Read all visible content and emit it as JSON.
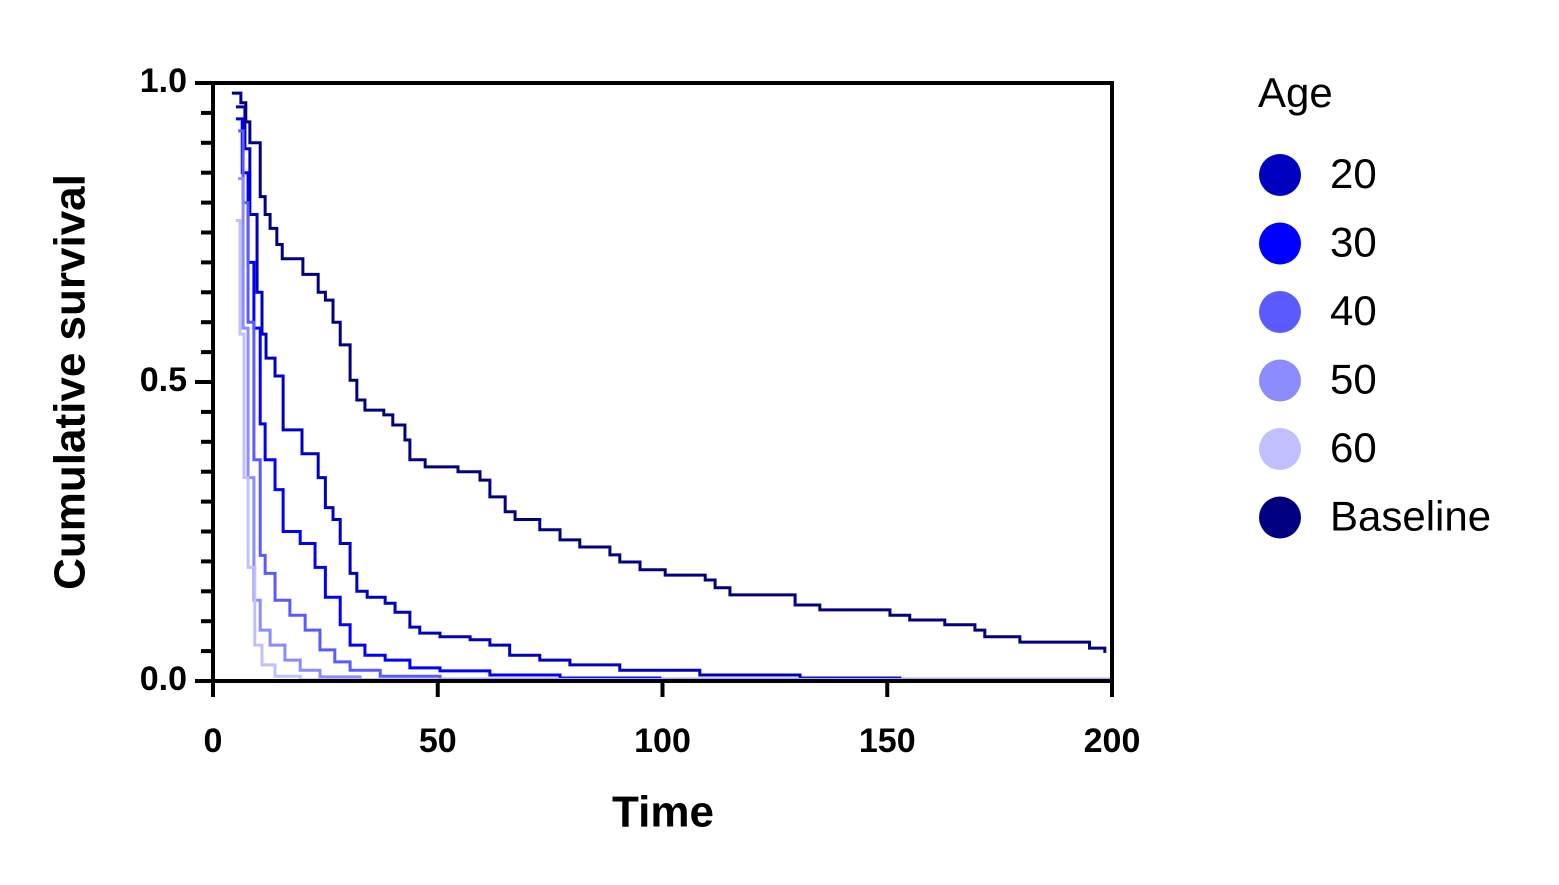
{
  "chart_data": {
    "type": "line",
    "step": true,
    "xlabel": "Time",
    "ylabel": "Cumulative survival",
    "xlim": [
      0,
      200
    ],
    "ylim": [
      0,
      1
    ],
    "xticks": [
      0,
      50,
      100,
      150,
      200
    ],
    "yticks": [
      {
        "value": 0,
        "label": "0.0"
      },
      {
        "value": 0.5,
        "label": "0.5"
      },
      {
        "value": 1,
        "label": "1.0"
      }
    ],
    "yminorticks": [
      0.05,
      0.1,
      0.15,
      0.2,
      0.25,
      0.3,
      0.35,
      0.4,
      0.45,
      0.55,
      0.6,
      0.65,
      0.7,
      0.75,
      0.8,
      0.85,
      0.9,
      0.95
    ],
    "legend_title": "Age",
    "legend_position": "right",
    "series": [
      {
        "name": "20",
        "color": "#0000c0",
        "x": [
          5.1,
          7.1,
          8.2,
          9.8,
          10.9,
          11.8,
          13.8,
          15.6,
          19.8,
          23.4,
          25,
          26.7,
          28.3,
          30.5,
          32,
          34.3,
          38.3,
          40.5,
          43.8,
          46,
          50.5,
          57.2,
          61.6,
          66,
          72.7,
          79.4,
          90.5,
          108.3,
          130.6,
          152.8,
          198.4
        ],
        "values": [
          0.96,
          0.89,
          0.78,
          0.65,
          0.58,
          0.54,
          0.51,
          0.42,
          0.38,
          0.34,
          0.29,
          0.27,
          0.23,
          0.18,
          0.15,
          0.14,
          0.13,
          0.115,
          0.09,
          0.08,
          0.074,
          0.069,
          0.06,
          0.043,
          0.035,
          0.027,
          0.018,
          0.01,
          0.005,
          0.002,
          0.001
        ]
      },
      {
        "name": "30",
        "color": "#0000ff",
        "x": [
          5.1,
          6.5,
          7.8,
          9.1,
          10.5,
          11.6,
          13.8,
          15.6,
          19.4,
          22.7,
          25,
          28.3,
          30.5,
          33.8,
          38.3,
          43.8,
          50.5,
          61.6,
          77.2,
          99.4,
          200
        ],
        "values": [
          0.94,
          0.85,
          0.7,
          0.59,
          0.43,
          0.37,
          0.32,
          0.25,
          0.23,
          0.19,
          0.14,
          0.094,
          0.06,
          0.043,
          0.035,
          0.022,
          0.017,
          0.01,
          0.005,
          0.002,
          0.001
        ]
      },
      {
        "name": "40",
        "color": "#5a5aff",
        "x": [
          5.6,
          6.7,
          7.8,
          9.1,
          10.5,
          11.6,
          13.8,
          17.1,
          20.5,
          23.8,
          27.1,
          30.5,
          37.2,
          50.5,
          200
        ],
        "values": [
          0.92,
          0.8,
          0.6,
          0.37,
          0.21,
          0.18,
          0.135,
          0.11,
          0.085,
          0.052,
          0.032,
          0.018,
          0.008,
          0.003,
          0
        ]
      },
      {
        "name": "50",
        "color": "#8c8cff",
        "x": [
          5.6,
          6.7,
          7.8,
          9.1,
          10.5,
          12.7,
          16,
          19.4,
          23.8,
          32.7,
          200
        ],
        "values": [
          0.84,
          0.59,
          0.34,
          0.135,
          0.085,
          0.06,
          0.035,
          0.018,
          0.007,
          0.002,
          0
        ]
      },
      {
        "name": "60",
        "color": "#c0c0ff",
        "x": [
          5.1,
          6,
          6.9,
          7.8,
          9.3,
          10.9,
          13.8,
          19.4,
          200
        ],
        "values": [
          0.77,
          0.58,
          0.34,
          0.19,
          0.06,
          0.027,
          0.008,
          0.002,
          0
        ]
      },
      {
        "name": "Baseline",
        "color": "#000080",
        "x": [
          4.2,
          6.2,
          7.3,
          8.2,
          10.5,
          11.6,
          12.7,
          14.2,
          15.4,
          20,
          23.4,
          25,
          26.7,
          28.3,
          30.5,
          32,
          33.8,
          38,
          40,
          42.7,
          43.8,
          47.2,
          54.5,
          59.4,
          61.6,
          65,
          67.2,
          72.7,
          77.2,
          81.6,
          88.3,
          90.5,
          95,
          100.6,
          109.5,
          111.7,
          115,
          129.5,
          135,
          150.6,
          155,
          162.8,
          169.5,
          171.7,
          179.5,
          195,
          198.4
        ],
        "values": [
          0.983,
          0.967,
          0.935,
          0.9,
          0.81,
          0.78,
          0.757,
          0.73,
          0.706,
          0.68,
          0.65,
          0.637,
          0.6,
          0.562,
          0.503,
          0.47,
          0.453,
          0.445,
          0.428,
          0.403,
          0.37,
          0.358,
          0.35,
          0.336,
          0.308,
          0.283,
          0.27,
          0.253,
          0.236,
          0.224,
          0.211,
          0.199,
          0.186,
          0.177,
          0.169,
          0.156,
          0.144,
          0.127,
          0.119,
          0.11,
          0.102,
          0.094,
          0.085,
          0.074,
          0.065,
          0.055,
          0.047
        ]
      }
    ]
  }
}
